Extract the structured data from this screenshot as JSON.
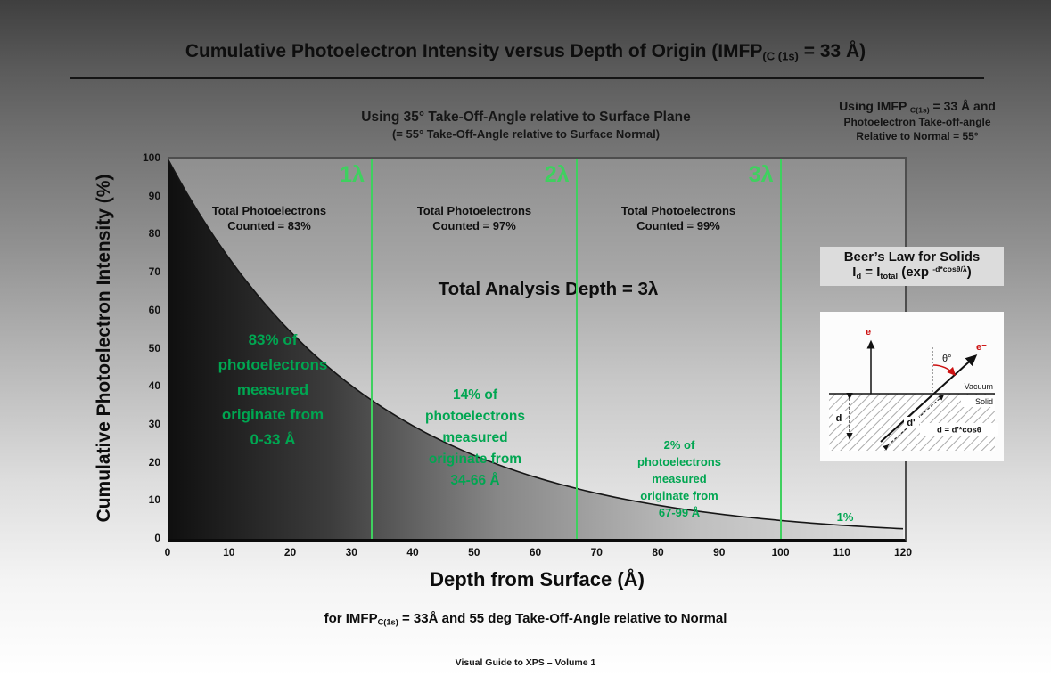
{
  "slide": {
    "title": {
      "pre": "Cumulative Photoelectron Intensity versus Depth of Origin (IMFP",
      "sub": "(C (1s)",
      "post": " = 33 Å)"
    },
    "subtitle": {
      "line1": "Using 35° Take-Off-Angle relative to Surface Plane",
      "line2": "(= 55° Take-Off-Angle relative to Surface Normal)"
    },
    "top_right_note": {
      "line1_pre": "Using IMFP ",
      "line1_sub": "C(1s)",
      "line1_post": " = 33 Å and",
      "line2": "Photoelectron Take-off-angle",
      "line3": "Relative to Normal = 55°"
    },
    "bottom_caption": {
      "pre": "for IMFP",
      "sub": "C(1s)",
      "post": " = 33Å and 55 deg Take-Off-Angle relative to Normal"
    },
    "footer": "Visual Guide to XPS – Volume 1"
  },
  "chart_data": {
    "type": "area",
    "title": "Cumulative Photoelectron Intensity versus Depth of Origin (IMFP C(1s) = 33 Å)",
    "xlabel": "Depth from Surface (Å)",
    "ylabel": "Cumulative Photoelectron Intensity (%)",
    "xlim": [
      0,
      120
    ],
    "ylim": [
      0,
      100
    ],
    "x_ticks": [
      0,
      10,
      20,
      30,
      40,
      50,
      60,
      70,
      80,
      90,
      100,
      110,
      120
    ],
    "y_ticks": [
      0,
      10,
      20,
      30,
      40,
      50,
      60,
      70,
      80,
      90,
      100
    ],
    "grid": false,
    "curve": {
      "function": "I(d) = 100 · exp(−d / 33)",
      "imfp_angstrom": 33,
      "x": [
        0,
        10,
        20,
        30,
        40,
        50,
        60,
        70,
        80,
        90,
        100,
        110,
        120
      ],
      "y": [
        100,
        73.9,
        54.5,
        40.3,
        29.8,
        22.0,
        16.2,
        12.0,
        8.9,
        6.5,
        4.8,
        3.6,
        2.6
      ]
    },
    "lambda_lines": [
      {
        "label": "1λ",
        "x": 33.3
      },
      {
        "label": "2λ",
        "x": 66.7
      },
      {
        "label": "3λ",
        "x": 100
      }
    ],
    "zone_totals": [
      {
        "text": "Total Photoelectrons\nCounted = 83%",
        "cumulative_percent": 83
      },
      {
        "text": "Total Photoelectrons\nCounted = 97%",
        "cumulative_percent": 97
      },
      {
        "text": "Total Photoelectrons\nCounted = 99%",
        "cumulative_percent": 99
      }
    ],
    "analysis_depth_label": "Total Analysis Depth = 3λ",
    "origin_notes": [
      {
        "percent": 83,
        "range": "0-33 Å",
        "text": "83% of\nphotoelectrons\nmeasured\noriginate from\n0-33 Å"
      },
      {
        "percent": 14,
        "range": "34-66 Å",
        "text": "14% of\nphotoelectrons\nmeasured\noriginate from\n34-66 Å"
      },
      {
        "percent": 2,
        "range": "67-99 Å",
        "text": "2% of\nphotoelectrons\nmeasured\noriginate from\n67-99 Å"
      },
      {
        "percent": 1,
        "range": "",
        "text": "1%"
      }
    ],
    "accent_green": "#00a651",
    "line_green": "#3fd05f"
  },
  "beers_law": {
    "title": "Beer’s Law for Solids",
    "formula": {
      "p1": "I",
      "s1": "d",
      "p2": " = I",
      "s2": "total",
      "p3": " (exp ",
      "sup": "-d*cosθ/λ",
      "p4": ")"
    }
  },
  "inset": {
    "electron": "e⁻",
    "theta": "θ°",
    "vacuum": "Vacuum",
    "solid": "Solid",
    "d_label": "d",
    "d_prime_label": "d'",
    "relation": "d = d'*cosθ"
  }
}
